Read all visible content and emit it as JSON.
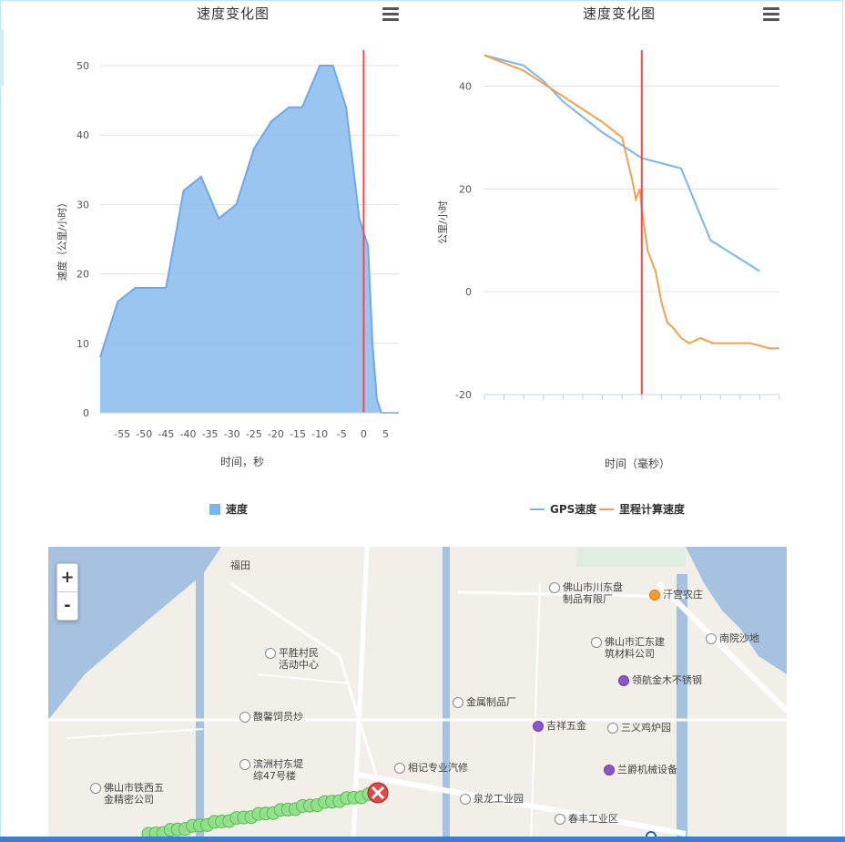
{
  "charts": {
    "left": {
      "title": "速度变化图",
      "xlabel": "时间，秒",
      "ylabel": "速度（公里/小时）",
      "legend": "速度"
    },
    "right": {
      "title": "速度变化图",
      "xlabel": "时间（毫秒）",
      "ylabel": "公里/小时",
      "legend_gps": "GPS速度",
      "legend_calc": "里程计算速度"
    }
  },
  "chart_data": [
    {
      "type": "area",
      "title": "速度变化图",
      "xlabel": "时间，秒",
      "ylabel": "速度（公里/小时）",
      "xlim": [
        -60,
        8
      ],
      "ylim": [
        0,
        50
      ],
      "xticks": [
        -55,
        -50,
        -45,
        -40,
        -35,
        -30,
        -25,
        -20,
        -15,
        -10,
        -5,
        0,
        5
      ],
      "yticks": [
        0,
        10,
        20,
        30,
        40,
        50
      ],
      "grid": true,
      "legend_position": "bottom-center",
      "marker_line_x": 0,
      "series": [
        {
          "name": "速度",
          "x": [
            -60,
            -56,
            -52,
            -48,
            -45,
            -41,
            -37,
            -33,
            -29,
            -25,
            -21,
            -17,
            -14,
            -10,
            -7,
            -4,
            -1,
            1,
            2,
            3,
            4,
            5,
            8
          ],
          "y": [
            8,
            16,
            18,
            18,
            18,
            32,
            34,
            28,
            30,
            38,
            42,
            44,
            44,
            50,
            50,
            44,
            28,
            24,
            10,
            2,
            0,
            0,
            0
          ]
        }
      ],
      "colors": {
        "fill": "#90bff0",
        "line": "#6fa8e6",
        "marker_line": "#ff4444"
      }
    },
    {
      "type": "line",
      "title": "速度变化图",
      "xlabel": "时间（毫秒）",
      "ylabel": "公里/小时",
      "xlim": [
        -8000,
        7000
      ],
      "ylim": [
        -20,
        47
      ],
      "yticks": [
        -20,
        0,
        20,
        40
      ],
      "grid": true,
      "legend_position": "bottom-center",
      "marker_line_x": 0,
      "series": [
        {
          "name": "GPS速度",
          "x": [
            -8000,
            -6000,
            -5000,
            -4000,
            -2000,
            0,
            2000,
            3500,
            6000
          ],
          "y": [
            46,
            44,
            41,
            37,
            31,
            26,
            24,
            10,
            4
          ]
        },
        {
          "name": "里程计算速度",
          "x": [
            -8000,
            -6000,
            -4000,
            -2000,
            -1000,
            -500,
            -300,
            -100,
            0,
            300,
            700,
            1000,
            1300,
            1600,
            2000,
            2400,
            3000,
            3600,
            4000,
            4500,
            5500,
            6500,
            7000
          ],
          "y": [
            46,
            43,
            38,
            33,
            30,
            22,
            18,
            20,
            16,
            8,
            4,
            -2,
            -6,
            -7,
            -9,
            -10,
            -9,
            -10,
            -10,
            -10,
            -10,
            -11,
            -11
          ]
        }
      ],
      "colors": {
        "gps": "#7cb5ec",
        "calc": "#f0a050",
        "marker_line": "#ff4444"
      }
    }
  ],
  "map": {
    "zoom_in": "+",
    "zoom_out": "-",
    "labels": [
      {
        "text": "佛山市川东盘\n制品有限厂",
        "type": "normal"
      },
      {
        "text": "汗宫农庄",
        "type": "orange"
      },
      {
        "text": "平胜村民\n活动中心",
        "type": "normal"
      },
      {
        "text": "佛山市汇东建\n筑材料公司",
        "type": "normal"
      },
      {
        "text": "南院沙地",
        "type": "normal"
      },
      {
        "text": "领航金木不锈钢",
        "type": "purple"
      },
      {
        "text": "金属制品厂",
        "type": "normal"
      },
      {
        "text": "馥馨饲员炒",
        "type": "normal"
      },
      {
        "text": "吉祥五金",
        "type": "purple"
      },
      {
        "text": "三义鸡炉园",
        "type": "normal"
      },
      {
        "text": "滨洲村东堤\n综47号楼",
        "type": "normal"
      },
      {
        "text": "相记专业汽修",
        "type": "normal"
      },
      {
        "text": "兰爵机械设备",
        "type": "purple"
      },
      {
        "text": "佛山市铁西五\n金精密公司",
        "type": "normal"
      },
      {
        "text": "泉龙工业园",
        "type": "normal"
      },
      {
        "text": "春丰工业区",
        "type": "normal"
      },
      {
        "text": "福田",
        "type": "normal"
      }
    ]
  }
}
